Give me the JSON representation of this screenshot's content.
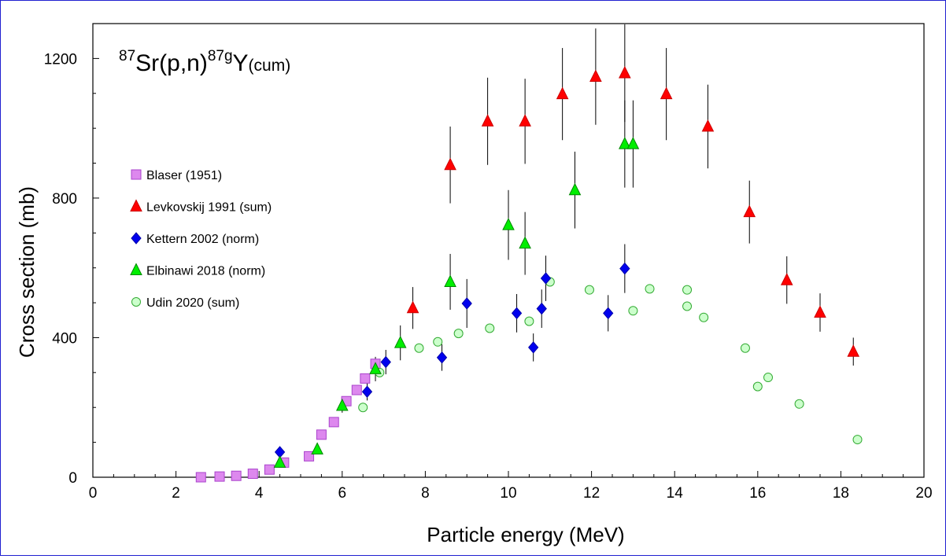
{
  "chart_data": {
    "type": "scatter",
    "title": {
      "sup1": "87",
      "base1": "Sr(p,n)",
      "sup2": "87g",
      "base2": "Y",
      "sub": "(cum)"
    },
    "xlabel": "Particle energy (MeV)",
    "ylabel": "Cross section (mb)",
    "xlim": [
      0,
      20
    ],
    "ylim": [
      0,
      1300
    ],
    "xticks": [
      0,
      2,
      4,
      6,
      8,
      10,
      12,
      14,
      16,
      18,
      20
    ],
    "yticks": [
      0,
      400,
      800,
      1200
    ],
    "grid": false,
    "legend_position": "left",
    "series": [
      {
        "name": "Blaser (1951)",
        "marker": "square",
        "color": "#dd88ee",
        "stroke": "#aa44cc",
        "points": [
          {
            "x": 2.6,
            "y": 0
          },
          {
            "x": 3.05,
            "y": 2
          },
          {
            "x": 3.45,
            "y": 4
          },
          {
            "x": 3.85,
            "y": 10
          },
          {
            "x": 4.25,
            "y": 22
          },
          {
            "x": 4.6,
            "y": 42
          },
          {
            "x": 5.2,
            "y": 60
          },
          {
            "x": 5.5,
            "y": 122
          },
          {
            "x": 5.8,
            "y": 158
          },
          {
            "x": 6.1,
            "y": 218
          },
          {
            "x": 6.35,
            "y": 250
          },
          {
            "x": 6.55,
            "y": 283
          },
          {
            "x": 6.8,
            "y": 325
          }
        ]
      },
      {
        "name": "Levkovskij 1991 (sum)",
        "marker": "triangle",
        "color": "#ff0000",
        "stroke": "#cc0000",
        "points": [
          {
            "x": 7.7,
            "y": 485,
            "err": 60
          },
          {
            "x": 8.6,
            "y": 895,
            "err": 110
          },
          {
            "x": 9.5,
            "y": 1020,
            "err": 125
          },
          {
            "x": 10.4,
            "y": 1020,
            "err": 122
          },
          {
            "x": 11.3,
            "y": 1098,
            "err": 132
          },
          {
            "x": 12.1,
            "y": 1148,
            "err": 138
          },
          {
            "x": 12.8,
            "y": 1158,
            "err": 140
          },
          {
            "x": 13.8,
            "y": 1098,
            "err": 132
          },
          {
            "x": 14.8,
            "y": 1005,
            "err": 120
          },
          {
            "x": 15.8,
            "y": 760,
            "err": 90
          },
          {
            "x": 16.7,
            "y": 565,
            "err": 68
          },
          {
            "x": 17.5,
            "y": 472,
            "err": 55
          },
          {
            "x": 18.3,
            "y": 360,
            "err": 40
          }
        ]
      },
      {
        "name": "Kettern 2002 (norm)",
        "marker": "diamond",
        "color": "#0000ee",
        "stroke": "#0000aa",
        "points": [
          {
            "x": 4.5,
            "y": 72,
            "err": 0
          },
          {
            "x": 6.6,
            "y": 245,
            "err": 25
          },
          {
            "x": 7.05,
            "y": 330,
            "err": 35
          },
          {
            "x": 8.4,
            "y": 343,
            "err": 38
          },
          {
            "x": 9.0,
            "y": 498,
            "err": 70
          },
          {
            "x": 10.2,
            "y": 470,
            "err": 55
          },
          {
            "x": 10.6,
            "y": 372,
            "err": 40
          },
          {
            "x": 10.8,
            "y": 483,
            "err": 55
          },
          {
            "x": 10.9,
            "y": 570,
            "err": 65
          },
          {
            "x": 12.4,
            "y": 470,
            "err": 52
          },
          {
            "x": 12.8,
            "y": 598,
            "err": 70
          }
        ]
      },
      {
        "name": "Elbinawi 2018 (norm)",
        "marker": "triangle",
        "color": "#00ee00",
        "stroke": "#008800",
        "points": [
          {
            "x": 4.5,
            "y": 42,
            "err": 0
          },
          {
            "x": 5.4,
            "y": 80,
            "err": 0
          },
          {
            "x": 6.0,
            "y": 205,
            "err": 20
          },
          {
            "x": 6.8,
            "y": 310,
            "err": 35
          },
          {
            "x": 7.4,
            "y": 385,
            "err": 50
          },
          {
            "x": 8.6,
            "y": 560,
            "err": 80
          },
          {
            "x": 10.0,
            "y": 723,
            "err": 100
          },
          {
            "x": 10.4,
            "y": 670,
            "err": 90
          },
          {
            "x": 11.6,
            "y": 823,
            "err": 110
          },
          {
            "x": 12.8,
            "y": 955,
            "err": 125
          },
          {
            "x": 13.0,
            "y": 955,
            "err": 125
          }
        ]
      },
      {
        "name": "Udin 2020 (sum)",
        "marker": "circle",
        "color": "#ccffcc",
        "stroke": "#33aa33",
        "points": [
          {
            "x": 6.5,
            "y": 200
          },
          {
            "x": 6.9,
            "y": 300
          },
          {
            "x": 7.85,
            "y": 370
          },
          {
            "x": 8.3,
            "y": 388
          },
          {
            "x": 8.8,
            "y": 412
          },
          {
            "x": 9.55,
            "y": 427
          },
          {
            "x": 10.5,
            "y": 447
          },
          {
            "x": 11.0,
            "y": 560
          },
          {
            "x": 11.95,
            "y": 537
          },
          {
            "x": 13.0,
            "y": 477
          },
          {
            "x": 13.4,
            "y": 540
          },
          {
            "x": 14.3,
            "y": 537
          },
          {
            "x": 14.3,
            "y": 490
          },
          {
            "x": 14.7,
            "y": 458
          },
          {
            "x": 15.7,
            "y": 370
          },
          {
            "x": 16.0,
            "y": 260
          },
          {
            "x": 16.25,
            "y": 286
          },
          {
            "x": 17.0,
            "y": 210
          },
          {
            "x": 18.4,
            "y": 108
          }
        ]
      }
    ]
  }
}
